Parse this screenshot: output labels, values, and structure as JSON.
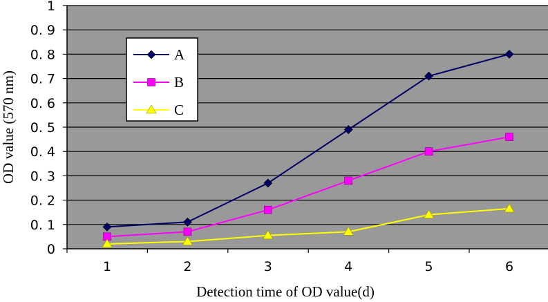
{
  "chart_data": {
    "type": "line",
    "title": "",
    "xlabel": "Detection time of OD value(d)",
    "ylabel": "OD value (570 nm)",
    "x": [
      1,
      2,
      3,
      4,
      5,
      6
    ],
    "x_tick_labels": [
      "1",
      "2",
      "3",
      "4",
      "5",
      "6"
    ],
    "ylim": [
      0,
      1
    ],
    "y_tick_labels": [
      "0",
      "0. 1",
      "0. 2",
      "0. 3",
      "0. 4",
      "0. 5",
      "0. 6",
      "0. 7",
      "0. 8",
      "0. 9",
      "1"
    ],
    "grid": true,
    "plot_background": "#999999",
    "legend_placement": "top-left",
    "series": [
      {
        "name": "A",
        "values": [
          0.09,
          0.11,
          0.27,
          0.49,
          0.71,
          0.8
        ],
        "color": "#000066",
        "marker": "diamond"
      },
      {
        "name": "B",
        "values": [
          0.05,
          0.07,
          0.16,
          0.28,
          0.4,
          0.46
        ],
        "color": "#ff00ff",
        "marker": "square"
      },
      {
        "name": "C",
        "values": [
          0.02,
          0.03,
          0.055,
          0.07,
          0.14,
          0.165
        ],
        "color": "#ffff00",
        "marker": "triangle"
      }
    ]
  }
}
